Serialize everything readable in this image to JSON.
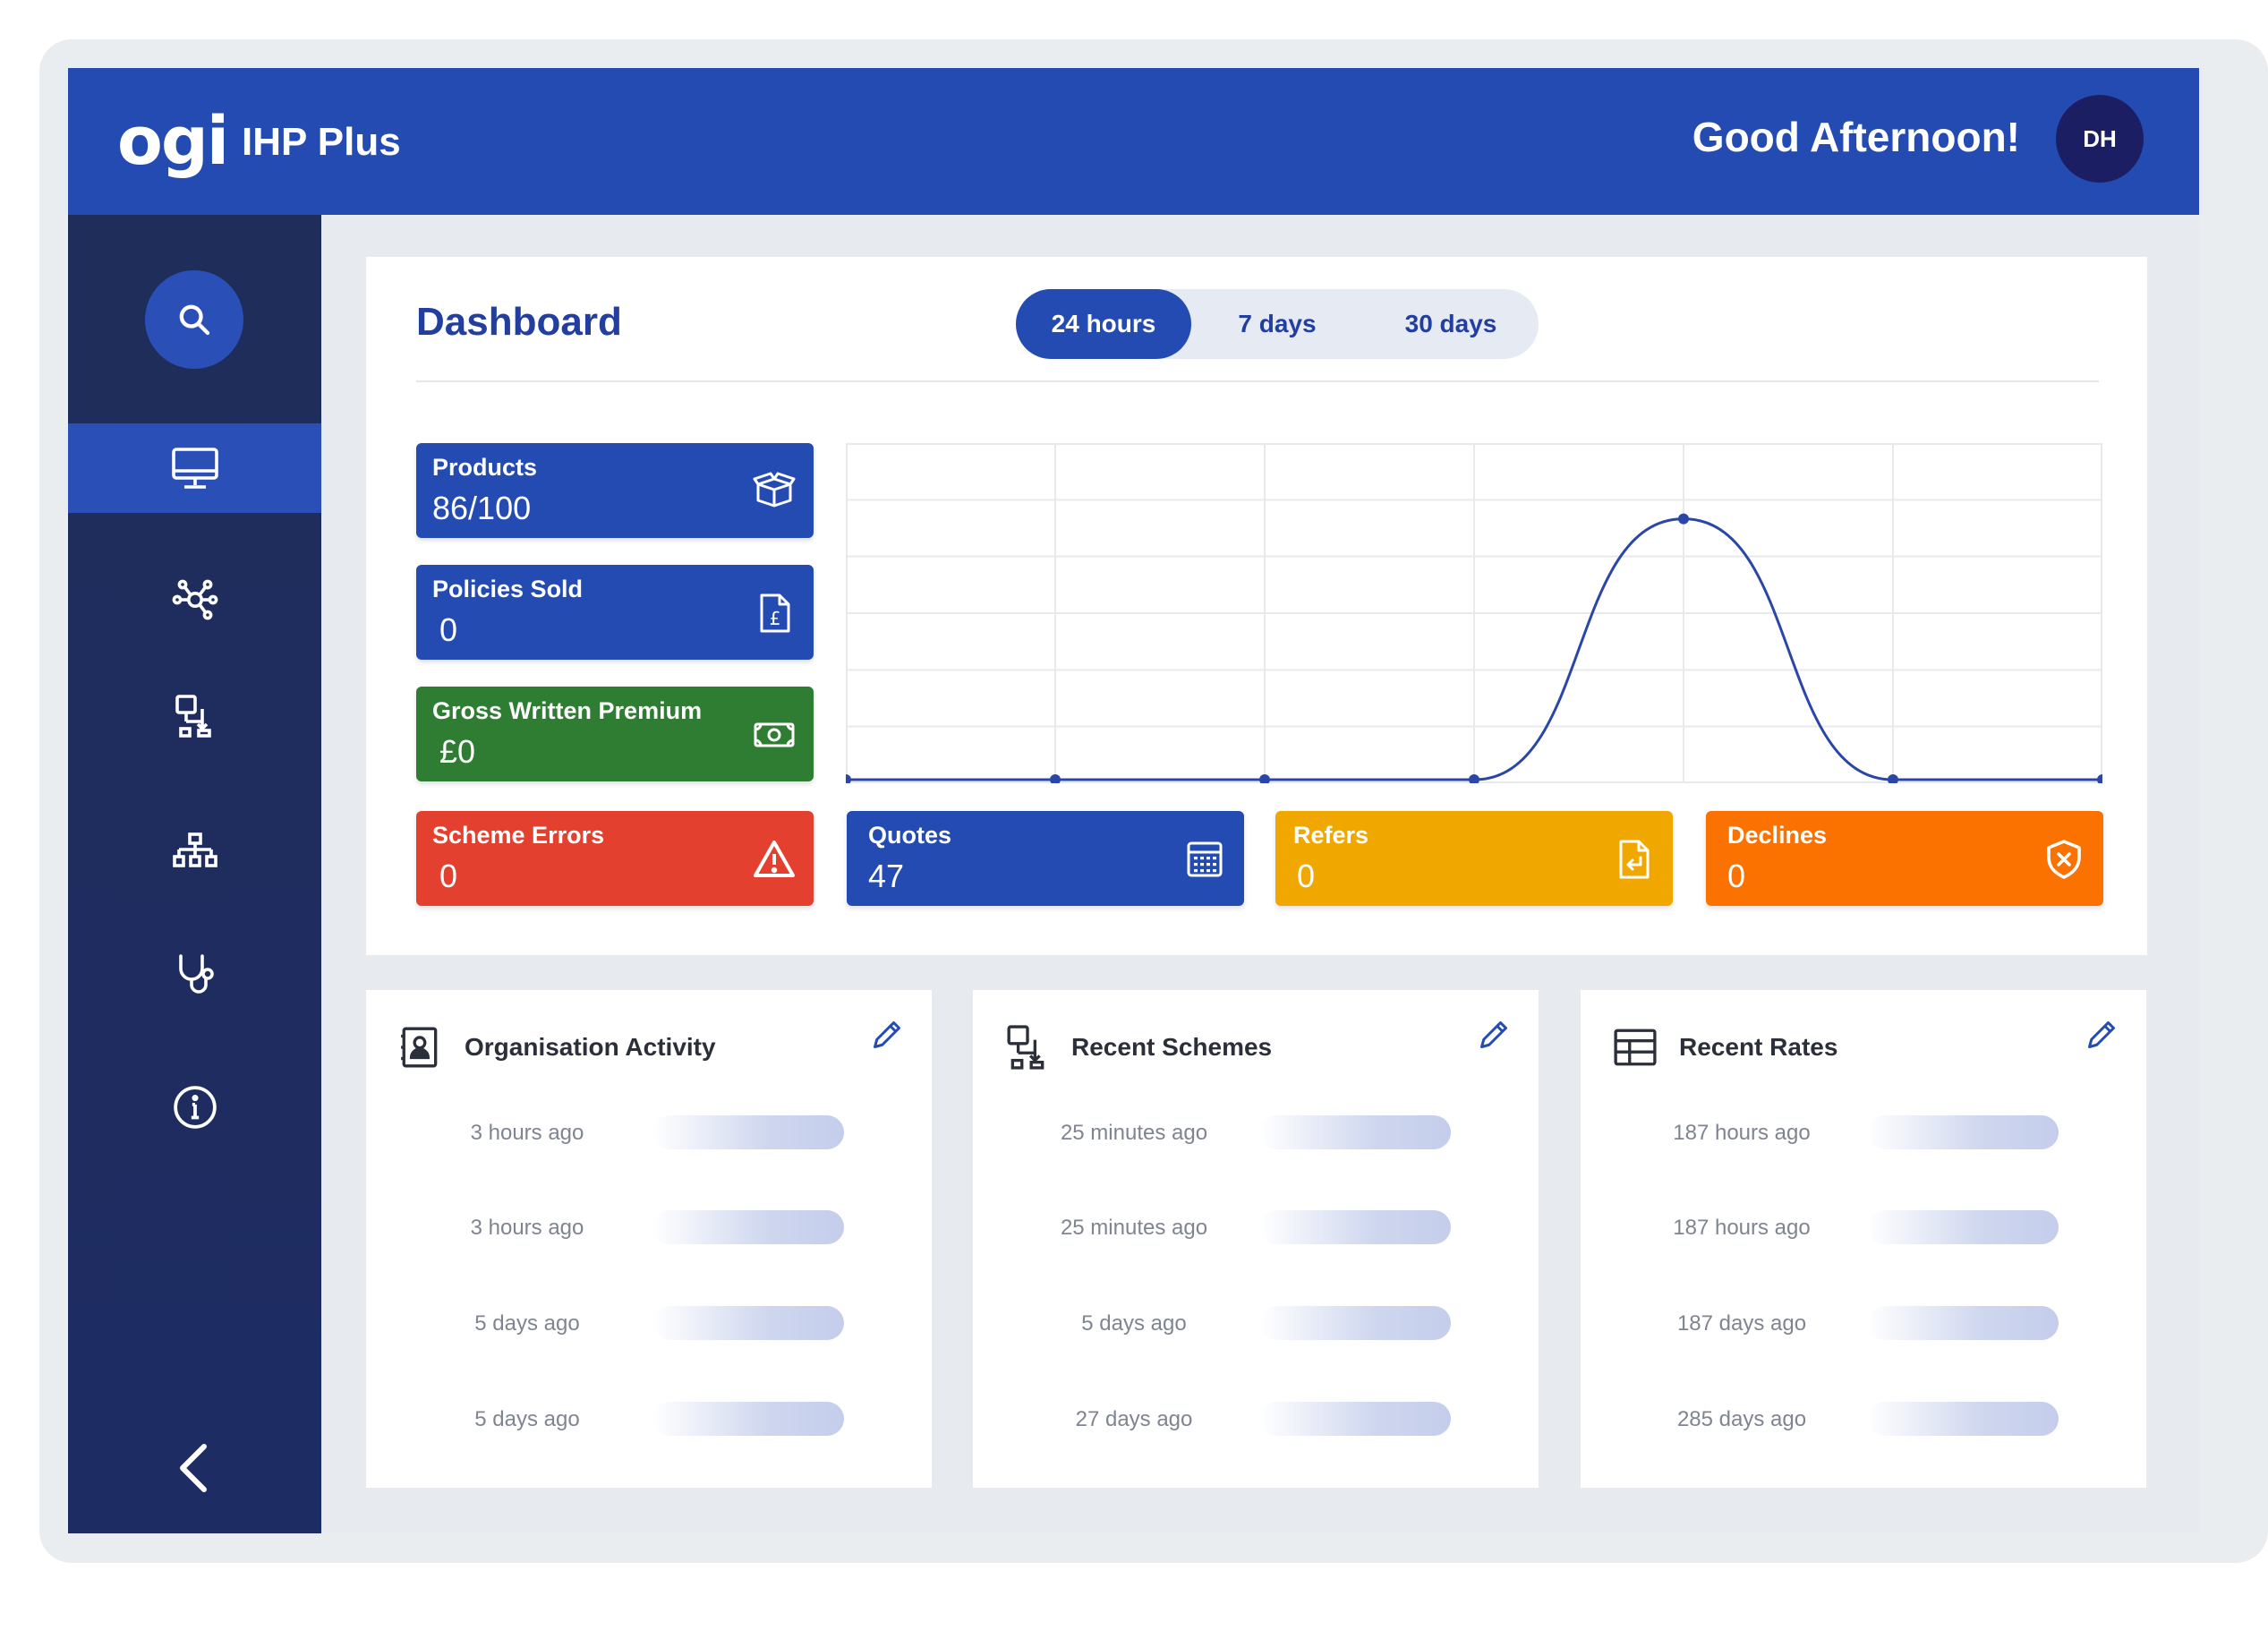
{
  "header": {
    "logo": "ogi",
    "app_name": "IHP Plus",
    "greeting": "Good Afternoon!",
    "avatar_initials": "DH"
  },
  "sidebar": {
    "items": [
      {
        "icon": "monitor-icon",
        "active": true
      },
      {
        "icon": "network-icon",
        "active": false
      },
      {
        "icon": "flow-icon",
        "active": false
      },
      {
        "icon": "hierarchy-icon",
        "active": false
      },
      {
        "icon": "stethoscope-icon",
        "active": false
      },
      {
        "icon": "info-icon",
        "active": false
      }
    ]
  },
  "dashboard": {
    "title": "Dashboard",
    "ranges": [
      "24 hours",
      "7 days",
      "30 days"
    ],
    "active_range": "24 hours",
    "tiles": {
      "products": {
        "label": "Products",
        "value": "86/100"
      },
      "policies_sold": {
        "label": "Policies Sold",
        "value": "0"
      },
      "gwp": {
        "label": "Gross Written Premium",
        "value": "£0"
      },
      "scheme_errors": {
        "label": "Scheme Errors",
        "value": "0"
      },
      "quotes": {
        "label": "Quotes",
        "value": "47"
      },
      "refers": {
        "label": "Refers",
        "value": "0"
      },
      "declines": {
        "label": "Declines",
        "value": "0"
      }
    },
    "colors": {
      "blue": "#244bb2",
      "green": "#2f7d33",
      "red": "#e3402f",
      "yellow": "#f0a800",
      "orange": "#fb7200"
    }
  },
  "chart_data": {
    "type": "line",
    "x": [
      0,
      1,
      2,
      3,
      4,
      5,
      6
    ],
    "values": [
      0,
      0,
      0,
      0,
      47,
      0,
      0
    ],
    "ylim": [
      0,
      60
    ],
    "grid": true,
    "title": "",
    "xlabel": "",
    "ylabel": ""
  },
  "panels": [
    {
      "title": "Organisation Activity",
      "icon": "contact-card-icon",
      "times": [
        "3 hours ago",
        "3 hours ago",
        "5 days ago",
        "5 days ago"
      ]
    },
    {
      "title": "Recent Schemes",
      "icon": "flow-icon",
      "times": [
        "25 minutes ago",
        "25 minutes ago",
        "5 days ago",
        "27 days ago"
      ]
    },
    {
      "title": "Recent Rates",
      "icon": "table-icon",
      "times": [
        "187 hours ago",
        "187  hours ago",
        "187 days ago",
        "285 days ago"
      ]
    }
  ]
}
